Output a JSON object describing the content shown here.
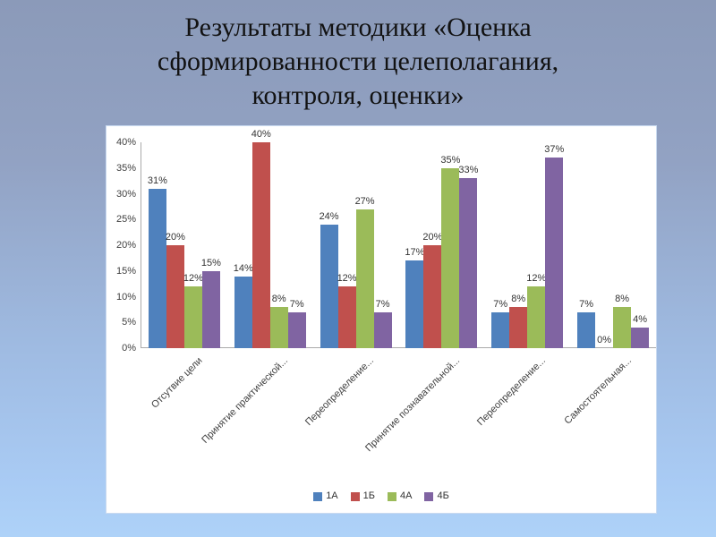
{
  "slide": {
    "title_lines": [
      "Результаты методики «Оценка",
      "сформированности целеполагания,",
      "контроля, оценки»"
    ]
  },
  "chart_data": {
    "type": "bar",
    "title": "",
    "xlabel": "",
    "ylabel": "",
    "categories": [
      "Отсутвие цели",
      "Принятие практической...",
      "Переопределение...",
      "Принятие познавательной...",
      "Переопределение...",
      "Самостоятельная..."
    ],
    "series": [
      {
        "name": "1А",
        "color": "#4F81BD",
        "values": [
          31,
          14,
          24,
          17,
          7,
          7
        ]
      },
      {
        "name": "1Б",
        "color": "#C0504D",
        "values": [
          20,
          40,
          12,
          20,
          8,
          0
        ]
      },
      {
        "name": "4А",
        "color": "#9BBB59",
        "values": [
          12,
          8,
          27,
          35,
          12,
          8
        ]
      },
      {
        "name": "4Б",
        "color": "#8064A2",
        "values": [
          15,
          7,
          7,
          33,
          37,
          4
        ]
      }
    ],
    "ylim": [
      0,
      40
    ],
    "yticks": [
      {
        "value": 0,
        "label": "0%"
      },
      {
        "value": 5,
        "label": "5%"
      },
      {
        "value": 10,
        "label": "10%"
      },
      {
        "value": 15,
        "label": "15%"
      },
      {
        "value": 20,
        "label": "20%"
      },
      {
        "value": 25,
        "label": "25%"
      },
      {
        "value": 30,
        "label": "30%"
      },
      {
        "value": 35,
        "label": "35%"
      },
      {
        "value": 40,
        "label": "40%"
      }
    ],
    "value_label_suffix": "%",
    "grid": false,
    "legend_position": "bottom",
    "plot_background": "#ffffff"
  }
}
